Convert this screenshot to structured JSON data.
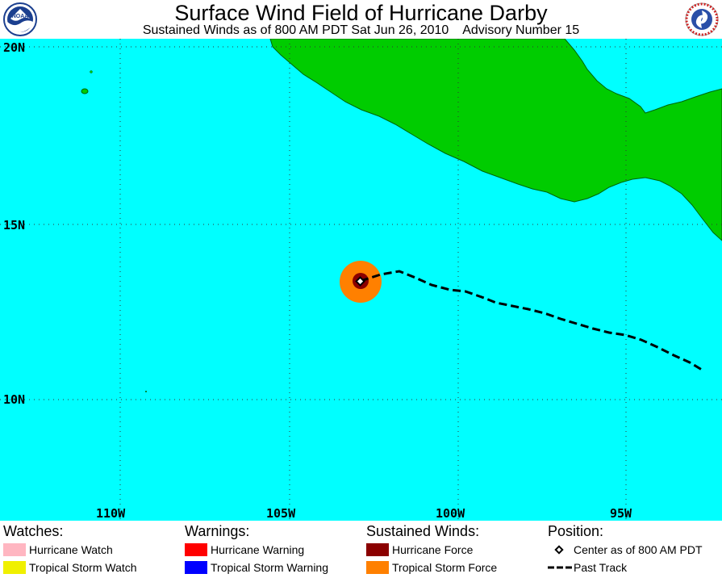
{
  "header": {
    "title": "Surface Wind Field of Hurricane Darby",
    "subtitle": "Sustained Winds as of 800 AM PDT Sat Jun 26, 2010    Advisory Number 15",
    "left_logo_text": "NOAA",
    "right_logo_text": "NATIONAL WEATHER SERVICE"
  },
  "map": {
    "lat_labels": [
      "20N",
      "15N",
      "10N"
    ],
    "lon_labels": [
      "110W",
      "105W",
      "100W",
      "95W"
    ],
    "colors": {
      "ocean": "#00ffff",
      "land": "#00cc00",
      "grid": "#333333",
      "hurricane_force": "#8b0000",
      "tropical_storm_force": "#ff8000",
      "track": "#000000"
    }
  },
  "legend": {
    "watches": {
      "heading": "Watches:",
      "items": [
        {
          "label": "Hurricane Watch",
          "color": "#ffb6c1"
        },
        {
          "label": "Tropical Storm Watch",
          "color": "#f0f000"
        }
      ]
    },
    "warnings": {
      "heading": "Warnings:",
      "items": [
        {
          "label": "Hurricane Warning",
          "color": "#ff0000"
        },
        {
          "label": "Tropical Storm Warning",
          "color": "#0000ff"
        }
      ]
    },
    "winds": {
      "heading": "Sustained Winds:",
      "items": [
        {
          "label": "Hurricane Force",
          "color": "#8b0000"
        },
        {
          "label": "Tropical Storm Force",
          "color": "#ff8000"
        }
      ]
    },
    "position": {
      "heading": "Position:",
      "items": [
        {
          "label": "Center as of 800 AM PDT",
          "icon": "diamond-icon"
        },
        {
          "label": "Past Track",
          "icon": "dashed-line-icon"
        }
      ]
    }
  }
}
